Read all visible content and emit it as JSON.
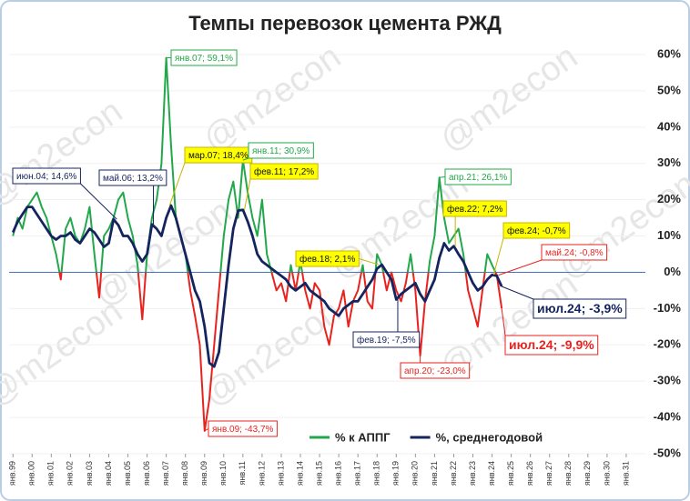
{
  "chart_data": {
    "type": "line",
    "title": "Темпы перевозок цемента РЖД",
    "watermark": "@m2econ",
    "x": [
      1999,
      1999.25,
      1999.5,
      1999.75,
      2000,
      2000.25,
      2000.5,
      2000.75,
      2001,
      2001.25,
      2001.5,
      2001.75,
      2002,
      2002.25,
      2002.5,
      2002.75,
      2003,
      2003.25,
      2003.5,
      2003.75,
      2004,
      2004.25,
      2004.5,
      2004.75,
      2005,
      2005.25,
      2005.5,
      2005.75,
      2006,
      2006.25,
      2006.5,
      2006.75,
      2007,
      2007.25,
      2007.5,
      2007.75,
      2008,
      2008.25,
      2008.5,
      2008.75,
      2009,
      2009.25,
      2009.5,
      2009.75,
      2010,
      2010.25,
      2010.5,
      2010.75,
      2011,
      2011.25,
      2011.5,
      2011.75,
      2012,
      2012.25,
      2012.5,
      2012.75,
      2013,
      2013.25,
      2013.5,
      2013.75,
      2014,
      2014.25,
      2014.5,
      2014.75,
      2015,
      2015.25,
      2015.5,
      2015.75,
      2016,
      2016.25,
      2016.5,
      2016.75,
      2017,
      2017.25,
      2017.5,
      2017.75,
      2018,
      2018.25,
      2018.5,
      2018.75,
      2019,
      2019.25,
      2019.5,
      2019.75,
      2020,
      2020.25,
      2020.5,
      2020.75,
      2021,
      2021.25,
      2021.5,
      2021.75,
      2022,
      2022.25,
      2022.5,
      2022.75,
      2023,
      2023.25,
      2023.5,
      2023.75,
      2024,
      2024.25,
      2024.5
    ],
    "series": [
      {
        "name": "% к АППГ",
        "color": "#22a84a",
        "negative_color": "#e8231f",
        "values": [
          10,
          15,
          12,
          18,
          20,
          22,
          18,
          15,
          10,
          5,
          -2,
          12,
          15,
          10,
          8,
          12,
          18,
          5,
          -7,
          10,
          12,
          15,
          20,
          22,
          15,
          10,
          2,
          -13,
          5,
          15,
          20,
          30,
          59.1,
          35,
          15,
          10,
          5,
          -5,
          -12,
          -20,
          -43.7,
          -35,
          -20,
          -5,
          10,
          20,
          25,
          15,
          30.9,
          22,
          15,
          10,
          20,
          5,
          0,
          -5,
          -3,
          -8,
          2,
          -5,
          3,
          -5,
          -10,
          -3,
          -5,
          -15,
          -20,
          -12,
          -10,
          -5,
          -15,
          -8,
          -5,
          2,
          -8,
          -10,
          5,
          2,
          -5,
          0,
          -5,
          -8,
          -3,
          5,
          -5,
          -23,
          -8,
          3,
          10,
          26.1,
          15,
          8,
          10,
          12,
          5,
          -5,
          -10,
          -15,
          -5,
          5,
          2,
          -0.8,
          -9.9
        ]
      },
      {
        "name": "%, среднегодовой",
        "color": "#14245e",
        "values": [
          11,
          14,
          16,
          18,
          18,
          16,
          14,
          12,
          10,
          9,
          10,
          10,
          11,
          9,
          8,
          10,
          12,
          11,
          9,
          7,
          8,
          14.6,
          13,
          10,
          10,
          8,
          5,
          3,
          5,
          13.2,
          12,
          10,
          15,
          18.4,
          15,
          10,
          5,
          0,
          -5,
          -8,
          -15,
          -25,
          -26,
          -22,
          -10,
          2,
          12,
          17,
          17.2,
          14,
          10,
          5,
          3,
          2,
          1,
          0,
          -1,
          -2,
          -4,
          -5,
          -4,
          -3,
          -5,
          -6,
          -7,
          -8,
          -10,
          -11,
          -12,
          -10,
          -9,
          -8,
          -8,
          -6,
          -4,
          -2,
          1,
          2.1,
          0,
          -2,
          -7.5,
          -6,
          -5,
          -4,
          -3,
          -6,
          -8,
          -5,
          -2,
          4,
          8,
          6,
          7.2,
          5,
          3,
          0,
          -3,
          -5,
          -4,
          -2,
          -0.7,
          -1,
          -3.9
        ]
      }
    ],
    "xlim": [
      1998.8,
      2032
    ],
    "xticks": [
      {
        "value": 1999,
        "label": "янв.99"
      },
      {
        "value": 2000,
        "label": "янв.00"
      },
      {
        "value": 2001,
        "label": "янв.01"
      },
      {
        "value": 2002,
        "label": "янв.02"
      },
      {
        "value": 2003,
        "label": "янв.03"
      },
      {
        "value": 2004,
        "label": "янв.04"
      },
      {
        "value": 2005,
        "label": "янв.05"
      },
      {
        "value": 2006,
        "label": "янв.06"
      },
      {
        "value": 2007,
        "label": "янв.07"
      },
      {
        "value": 2008,
        "label": "янв.08"
      },
      {
        "value": 2009,
        "label": "янв.09"
      },
      {
        "value": 2010,
        "label": "янв.10"
      },
      {
        "value": 2011,
        "label": "янв.11"
      },
      {
        "value": 2012,
        "label": "янв.12"
      },
      {
        "value": 2013,
        "label": "янв.13"
      },
      {
        "value": 2014,
        "label": "янв.14"
      },
      {
        "value": 2015,
        "label": "янв.15"
      },
      {
        "value": 2016,
        "label": "янв.16"
      },
      {
        "value": 2017,
        "label": "янв.17"
      },
      {
        "value": 2018,
        "label": "янв.18"
      },
      {
        "value": 2019,
        "label": "янв.19"
      },
      {
        "value": 2020,
        "label": "янв.20"
      },
      {
        "value": 2021,
        "label": "янв.21"
      },
      {
        "value": 2022,
        "label": "янв.22"
      },
      {
        "value": 2023,
        "label": "янв.23"
      },
      {
        "value": 2024,
        "label": "янв.24"
      },
      {
        "value": 2025,
        "label": "янв.25"
      },
      {
        "value": 2026,
        "label": "янв.26"
      },
      {
        "value": 2027,
        "label": "янв.27"
      },
      {
        "value": 2028,
        "label": "янв.28"
      },
      {
        "value": 2029,
        "label": "янв.29"
      },
      {
        "value": 2030,
        "label": "янв.30"
      },
      {
        "value": 2031,
        "label": "янв.31"
      }
    ],
    "ylim": [
      -50,
      60
    ],
    "yticks": [
      {
        "value": 60,
        "label": "60%"
      },
      {
        "value": 50,
        "label": "50%"
      },
      {
        "value": 40,
        "label": "40%"
      },
      {
        "value": 30,
        "label": "30%"
      },
      {
        "value": 20,
        "label": "20%"
      },
      {
        "value": 10,
        "label": "10%"
      },
      {
        "value": 0,
        "label": "0%"
      },
      {
        "value": -10,
        "label": "-10%"
      },
      {
        "value": -20,
        "label": "-20%"
      },
      {
        "value": -30,
        "label": "-30%"
      },
      {
        "value": -40,
        "label": "-40%"
      },
      {
        "value": -50,
        "label": "-50%"
      }
    ],
    "annotations": [
      {
        "text": "янв.07; 59,1%",
        "x": 2007,
        "y": 59.1,
        "style": "green"
      },
      {
        "text": "июн.04; 14,6%",
        "x": 2004.42,
        "y": 14.6,
        "style": "navy"
      },
      {
        "text": "май.06; 13,2%",
        "x": 2006.33,
        "y": 13.2,
        "style": "navy"
      },
      {
        "text": "мар.07; 18,4%",
        "x": 2007.17,
        "y": 18.4,
        "style": "yellow"
      },
      {
        "text": "янв.11; 30,9%",
        "x": 2011,
        "y": 30.9,
        "style": "green"
      },
      {
        "text": "фев.11; 17,2%",
        "x": 2011.08,
        "y": 17.2,
        "style": "yellow"
      },
      {
        "text": "янв.09; -43,7%",
        "x": 2009,
        "y": -43.7,
        "style": "red"
      },
      {
        "text": "фев.18; 2,1%",
        "x": 2018.08,
        "y": 2.1,
        "style": "yellow"
      },
      {
        "text": "фев.19; -7,5%",
        "x": 2019.08,
        "y": -7.5,
        "style": "navy"
      },
      {
        "text": "апр.20; -23,0%",
        "x": 2020.25,
        "y": -23,
        "style": "red"
      },
      {
        "text": "апр.21; 26,1%",
        "x": 2021.25,
        "y": 26.1,
        "style": "green"
      },
      {
        "text": "фев.22; 7,2%",
        "x": 2022.08,
        "y": 7.2,
        "style": "yellow"
      },
      {
        "text": "фев.24; -0,7%",
        "x": 2024.08,
        "y": -0.7,
        "style": "yellow"
      },
      {
        "text": "май.24; -0,8%",
        "x": 2024.33,
        "y": -0.8,
        "style": "red"
      },
      {
        "text": "июл.24; -3,9%",
        "x": 2024.5,
        "y": -3.9,
        "style": "navy-big"
      },
      {
        "text": "июл.24; -9,9%",
        "x": 2024.5,
        "y": -9.9,
        "style": "red-big"
      }
    ],
    "legend": "bottom"
  }
}
